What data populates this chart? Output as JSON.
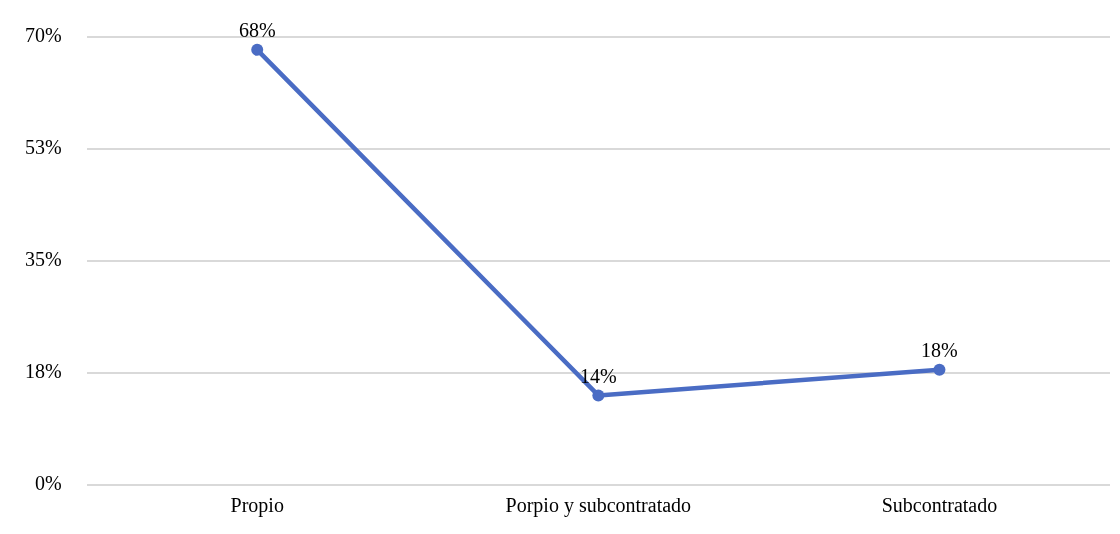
{
  "chart_data": {
    "type": "line",
    "categories": [
      "Propio",
      "Porpio y subcontratado",
      "Subcontratado"
    ],
    "series": [
      {
        "color": "#4a6cc4",
        "values": [
          68,
          14,
          18
        ],
        "value_labels": [
          "68%",
          "14%",
          "18%"
        ]
      }
    ],
    "ylim": [
      0,
      70
    ],
    "yticks": [
      {
        "value": 0,
        "label": "0%"
      },
      {
        "value": 17.5,
        "label": "18%"
      },
      {
        "value": 35,
        "label": "35%"
      },
      {
        "value": 52.5,
        "label": "53%"
      },
      {
        "value": 70,
        "label": "70%"
      }
    ],
    "grid": "y",
    "marker": "circle",
    "line_style": "solid",
    "legend": false
  }
}
